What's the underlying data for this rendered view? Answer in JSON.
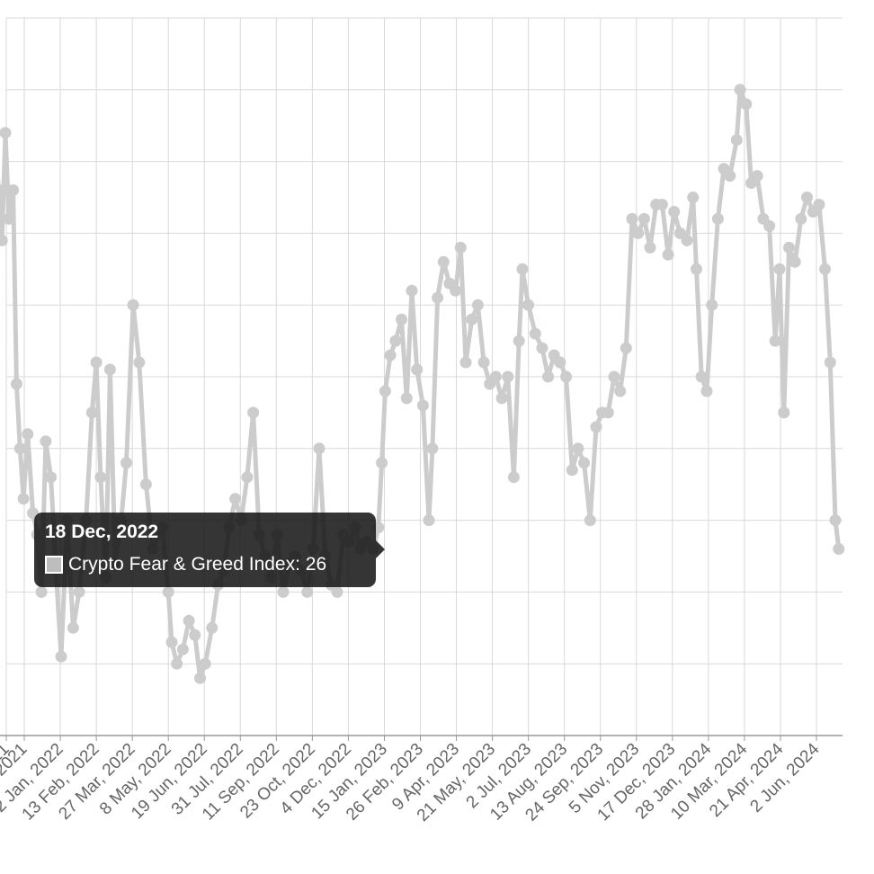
{
  "chart_data": {
    "type": "line",
    "series": [
      {
        "name": "Crypto Fear & Greed Index",
        "color": "#cccccc",
        "points": [
          [
            "2021-09-01",
            79
          ],
          [
            "2021-09-08",
            76
          ],
          [
            "2021-09-15",
            52
          ],
          [
            "2021-09-22",
            22
          ],
          [
            "2021-09-29",
            29
          ],
          [
            "2021-10-06",
            50
          ],
          [
            "2021-10-10",
            68
          ],
          [
            "2021-10-14",
            75
          ],
          [
            "2021-10-18",
            84
          ],
          [
            "2021-10-22",
            76
          ],
          [
            "2021-10-26",
            69
          ],
          [
            "2021-10-30",
            84
          ],
          [
            "2021-11-03",
            72
          ],
          [
            "2021-11-08",
            76
          ],
          [
            "2021-11-12",
            49
          ],
          [
            "2021-11-16",
            40
          ],
          [
            "2021-11-20",
            33
          ],
          [
            "2021-11-25",
            42
          ],
          [
            "2021-12-01",
            31
          ],
          [
            "2021-12-06",
            28
          ],
          [
            "2021-12-11",
            20
          ],
          [
            "2021-12-16",
            41
          ],
          [
            "2021-12-22",
            36
          ],
          [
            "2021-12-28",
            23
          ],
          [
            "2022-01-03",
            11
          ],
          [
            "2022-01-10",
            30
          ],
          [
            "2022-01-17",
            15
          ],
          [
            "2022-01-24",
            20
          ],
          [
            "2022-02-01",
            30
          ],
          [
            "2022-02-08",
            45
          ],
          [
            "2022-02-13",
            52
          ],
          [
            "2022-02-18",
            36
          ],
          [
            "2022-02-24",
            22
          ],
          [
            "2022-03-01",
            51
          ],
          [
            "2022-03-07",
            24
          ],
          [
            "2022-03-14",
            30
          ],
          [
            "2022-03-20",
            38
          ],
          [
            "2022-03-28",
            60
          ],
          [
            "2022-04-04",
            52
          ],
          [
            "2022-04-12",
            35
          ],
          [
            "2022-04-20",
            26
          ],
          [
            "2022-05-01",
            29
          ],
          [
            "2022-05-08",
            20
          ],
          [
            "2022-05-12",
            13
          ],
          [
            "2022-05-18",
            10
          ],
          [
            "2022-05-25",
            12
          ],
          [
            "2022-06-01",
            16
          ],
          [
            "2022-06-08",
            14
          ],
          [
            "2022-06-14",
            8
          ],
          [
            "2022-06-20",
            10
          ],
          [
            "2022-06-28",
            15
          ],
          [
            "2022-07-05",
            21
          ],
          [
            "2022-07-12",
            23
          ],
          [
            "2022-07-18",
            29
          ],
          [
            "2022-07-25",
            33
          ],
          [
            "2022-08-01",
            30
          ],
          [
            "2022-08-08",
            36
          ],
          [
            "2022-08-15",
            45
          ],
          [
            "2022-08-22",
            28
          ],
          [
            "2022-08-29",
            25
          ],
          [
            "2022-09-05",
            22
          ],
          [
            "2022-09-12",
            28
          ],
          [
            "2022-09-19",
            20
          ],
          [
            "2022-09-26",
            24
          ],
          [
            "2022-10-03",
            25
          ],
          [
            "2022-10-10",
            23
          ],
          [
            "2022-10-17",
            20
          ],
          [
            "2022-10-24",
            26
          ],
          [
            "2022-10-31",
            40
          ],
          [
            "2022-11-07",
            25
          ],
          [
            "2022-11-14",
            21
          ],
          [
            "2022-11-21",
            20
          ],
          [
            "2022-11-28",
            28
          ],
          [
            "2022-12-05",
            27
          ],
          [
            "2022-12-12",
            29
          ],
          [
            "2022-12-18",
            26
          ],
          [
            "2022-12-25",
            27
          ],
          [
            "2023-01-02",
            26
          ],
          [
            "2023-01-08",
            29
          ],
          [
            "2023-01-12",
            38
          ],
          [
            "2023-01-16",
            48
          ],
          [
            "2023-01-22",
            53
          ],
          [
            "2023-01-28",
            55
          ],
          [
            "2023-02-04",
            58
          ],
          [
            "2023-02-10",
            47
          ],
          [
            "2023-02-16",
            62
          ],
          [
            "2023-02-22",
            51
          ],
          [
            "2023-03-01",
            46
          ],
          [
            "2023-03-08",
            30
          ],
          [
            "2023-03-12",
            40
          ],
          [
            "2023-03-18",
            61
          ],
          [
            "2023-03-25",
            66
          ],
          [
            "2023-04-01",
            63
          ],
          [
            "2023-04-08",
            62
          ],
          [
            "2023-04-14",
            68
          ],
          [
            "2023-04-20",
            52
          ],
          [
            "2023-04-27",
            58
          ],
          [
            "2023-05-04",
            60
          ],
          [
            "2023-05-11",
            52
          ],
          [
            "2023-05-18",
            49
          ],
          [
            "2023-05-25",
            50
          ],
          [
            "2023-06-01",
            47
          ],
          [
            "2023-06-08",
            50
          ],
          [
            "2023-06-15",
            36
          ],
          [
            "2023-06-21",
            55
          ],
          [
            "2023-06-25",
            65
          ],
          [
            "2023-07-02",
            60
          ],
          [
            "2023-07-10",
            56
          ],
          [
            "2023-07-18",
            54
          ],
          [
            "2023-07-25",
            50
          ],
          [
            "2023-08-01",
            53
          ],
          [
            "2023-08-08",
            52
          ],
          [
            "2023-08-15",
            50
          ],
          [
            "2023-08-22",
            37
          ],
          [
            "2023-08-29",
            40
          ],
          [
            "2023-09-05",
            38
          ],
          [
            "2023-09-12",
            30
          ],
          [
            "2023-09-19",
            43
          ],
          [
            "2023-09-26",
            45
          ],
          [
            "2023-10-03",
            45
          ],
          [
            "2023-10-10",
            50
          ],
          [
            "2023-10-17",
            48
          ],
          [
            "2023-10-24",
            54
          ],
          [
            "2023-10-31",
            72
          ],
          [
            "2023-11-07",
            70
          ],
          [
            "2023-11-14",
            72
          ],
          [
            "2023-11-21",
            68
          ],
          [
            "2023-11-28",
            74
          ],
          [
            "2023-12-05",
            74
          ],
          [
            "2023-12-12",
            67
          ],
          [
            "2023-12-19",
            73
          ],
          [
            "2023-12-26",
            70
          ],
          [
            "2024-01-03",
            69
          ],
          [
            "2024-01-10",
            75
          ],
          [
            "2024-01-14",
            65
          ],
          [
            "2024-01-20",
            50
          ],
          [
            "2024-01-26",
            48
          ],
          [
            "2024-02-01",
            60
          ],
          [
            "2024-02-08",
            72
          ],
          [
            "2024-02-15",
            79
          ],
          [
            "2024-02-22",
            78
          ],
          [
            "2024-03-01",
            83
          ],
          [
            "2024-03-05",
            90
          ],
          [
            "2024-03-12",
            88
          ],
          [
            "2024-03-18",
            77
          ],
          [
            "2024-03-25",
            78
          ],
          [
            "2024-04-01",
            72
          ],
          [
            "2024-04-08",
            71
          ],
          [
            "2024-04-15",
            55
          ],
          [
            "2024-04-20",
            65
          ],
          [
            "2024-04-25",
            45
          ],
          [
            "2024-05-01",
            68
          ],
          [
            "2024-05-08",
            66
          ],
          [
            "2024-05-15",
            72
          ],
          [
            "2024-05-22",
            75
          ],
          [
            "2024-05-29",
            73
          ],
          [
            "2024-06-05",
            74
          ],
          [
            "2024-06-12",
            65
          ],
          [
            "2024-06-18",
            52
          ],
          [
            "2024-06-24",
            30
          ],
          [
            "2024-06-28",
            26
          ]
        ]
      }
    ],
    "x_ticks": [
      "31 Oct, 2021",
      "21 Nov, 2021",
      "2 Jan, 2022",
      "13 Feb, 2022",
      "27 Mar, 2022",
      "8 May, 2022",
      "19 Jun, 2022",
      "31 Jul, 2022",
      "11 Sep, 2022",
      "23 Oct, 2022",
      "4 Dec, 2022",
      "15 Jan, 2023",
      "26 Feb, 2023",
      "9 Apr, 2023",
      "21 May, 2023",
      "2 Jul, 2023",
      "13 Aug, 2023",
      "24 Sep, 2023",
      "5 Nov, 2023",
      "17 Dec, 2023",
      "28 Jan, 2024",
      "10 Mar, 2024",
      "21 Apr, 2024",
      "2 Jun, 2024"
    ],
    "ylim": [
      0,
      100
    ],
    "y_gridlines": [
      10,
      20,
      30,
      40,
      50,
      60,
      70,
      80,
      90,
      100
    ],
    "grid": true,
    "tooltip": {
      "date": "18 Dec, 2022",
      "label": "Crypto Fear & Greed Index: 26"
    }
  }
}
